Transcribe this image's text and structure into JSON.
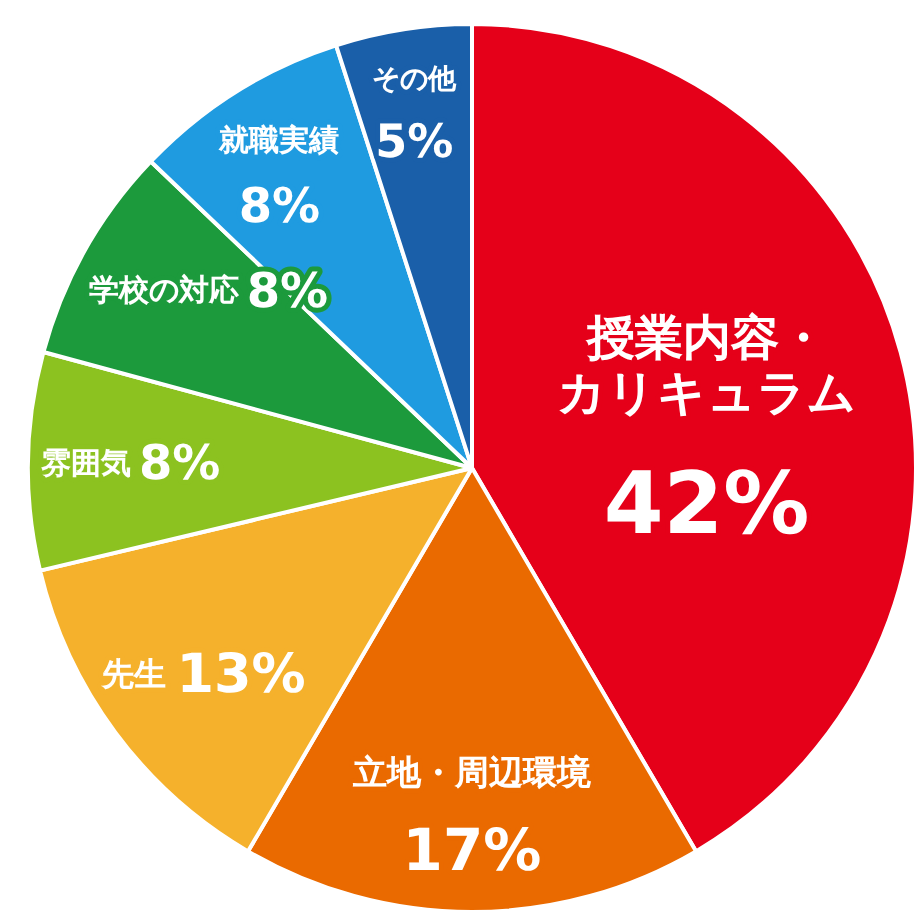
{
  "chart_data": {
    "type": "pie",
    "categories": [
      "授業内容・カリキュラム",
      "立地・周辺環境",
      "先生",
      "雰囲気",
      "学校の対応",
      "就職実績",
      "その他"
    ],
    "values": [
      42,
      17,
      13,
      8,
      8,
      8,
      5
    ],
    "value_labels": [
      "42%",
      "17%",
      "13%",
      "8%",
      "8%",
      "8%",
      "5%"
    ],
    "colors": [
      "#e50019",
      "#ea6a00",
      "#f5b12c",
      "#8cc220",
      "#1c9a3c",
      "#1f9be0",
      "#1a5fa9"
    ]
  }
}
